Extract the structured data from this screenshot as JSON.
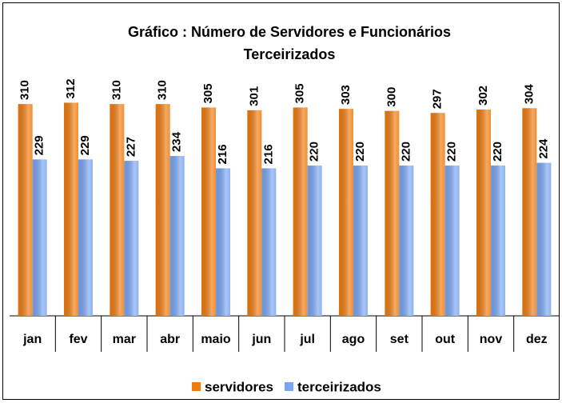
{
  "chart_data": {
    "type": "bar",
    "title": "Gráfico : Número de Servidores e Funcionários Terceirizados",
    "categories": [
      "jan",
      "fev",
      "mar",
      "abr",
      "maio",
      "jun",
      "jul",
      "ago",
      "set",
      "out",
      "nov",
      "dez"
    ],
    "series": [
      {
        "name": "servidores",
        "color": "#f07c10",
        "values": [
          310,
          312,
          310,
          310,
          305,
          301,
          305,
          303,
          300,
          297,
          302,
          304
        ]
      },
      {
        "name": "terceirizados",
        "color": "#7aa6f2",
        "values": [
          229,
          229,
          227,
          234,
          216,
          216,
          220,
          220,
          220,
          220,
          220,
          224
        ]
      }
    ],
    "ylim": [
      0,
      350
    ],
    "legend": "bottom"
  }
}
